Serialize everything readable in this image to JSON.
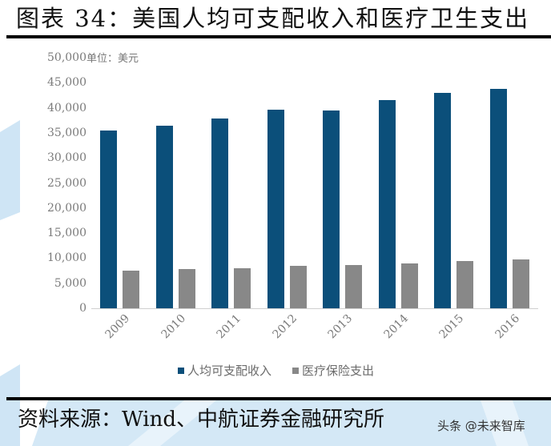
{
  "header": {
    "title": "图表 34：美国人均可支配收入和医疗卫生支出"
  },
  "chart": {
    "unit_label": "单位：美元",
    "y_ticks": [
      "50,000",
      "45,000",
      "40,000",
      "35,000",
      "30,000",
      "25,000",
      "20,000",
      "15,000",
      "10,000",
      "5,000",
      "0"
    ],
    "legend": [
      {
        "label": "人均可支配收入",
        "color": "#0b4f7a"
      },
      {
        "label": "医疗保险支出",
        "color": "#888888"
      }
    ]
  },
  "footer": {
    "source": "资料来源：Wind、中航证券金融研究所",
    "watermark": "头条 @未来智库"
  },
  "colors": {
    "primary_series": "#0b4f7a",
    "secondary_series": "#888888",
    "background_decor": "#cfe5f5"
  },
  "chart_data": {
    "type": "bar",
    "title": "美国人均可支配收入和医疗卫生支出",
    "xlabel": "",
    "ylabel": "单位：美元",
    "ylim": [
      0,
      50000
    ],
    "y_tick_step": 5000,
    "grid": false,
    "legend_position": "bottom",
    "categories": [
      "2009",
      "2010",
      "2011",
      "2012",
      "2013",
      "2014",
      "2015",
      "2016"
    ],
    "series": [
      {
        "name": "人均可支配收入",
        "color": "#0b4f7a",
        "values": [
          35500,
          36400,
          37900,
          39600,
          39400,
          41500,
          43000,
          43800
        ]
      },
      {
        "name": "医疗保险支出",
        "color": "#888888",
        "values": [
          7500,
          7900,
          8000,
          8400,
          8600,
          9000,
          9500,
          9700
        ]
      }
    ]
  }
}
